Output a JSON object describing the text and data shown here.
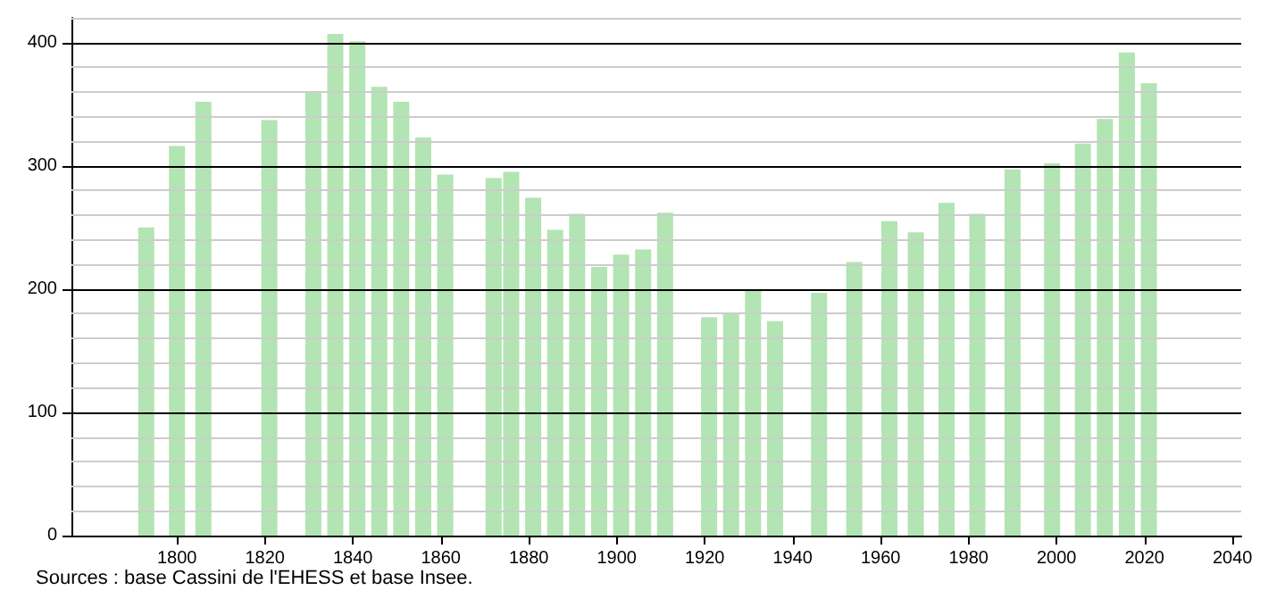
{
  "chart_data": {
    "type": "bar",
    "x": [
      1793,
      1800,
      1806,
      1821,
      1831,
      1836,
      1841,
      1846,
      1851,
      1856,
      1861,
      1872,
      1876,
      1881,
      1886,
      1891,
      1896,
      1901,
      1906,
      1911,
      1921,
      1926,
      1931,
      1936,
      1946,
      1954,
      1962,
      1968,
      1975,
      1982,
      1990,
      1999,
      2006,
      2011,
      2016,
      2021
    ],
    "values": [
      250,
      316,
      352,
      337,
      360,
      407,
      401,
      364,
      352,
      323,
      293,
      290,
      295,
      274,
      248,
      261,
      218,
      228,
      232,
      262,
      177,
      181,
      199,
      174,
      197,
      222,
      255,
      246,
      270,
      261,
      297,
      302,
      318,
      338,
      392,
      367
    ],
    "color": "#b3e4b3",
    "xlim": [
      1776,
      2042
    ],
    "xticks": [
      1800,
      1820,
      1840,
      1860,
      1880,
      1900,
      1920,
      1940,
      1960,
      1980,
      2000,
      2020,
      2040
    ],
    "ylim": [
      0,
      420
    ],
    "yticks": [
      0,
      {
        "value": 20,
        "label": null
      },
      {
        "value": 40,
        "label": null
      },
      {
        "value": 60,
        "label": null
      },
      {
        "value": 80,
        "label": null
      },
      100,
      {
        "value": 120,
        "label": null
      },
      {
        "value": 140,
        "label": null
      },
      {
        "value": 160,
        "label": null
      },
      {
        "value": 180,
        "label": null
      },
      200,
      {
        "value": 220,
        "label": null
      },
      {
        "value": 240,
        "label": null
      },
      {
        "value": 260,
        "label": null
      },
      {
        "value": 280,
        "label": null
      },
      300,
      {
        "value": 320,
        "label": null
      },
      {
        "value": 340,
        "label": null
      },
      {
        "value": 360,
        "label": null
      },
      {
        "value": 380,
        "label": null
      },
      400,
      {
        "value": 420,
        "label": null
      }
    ],
    "grid": "y",
    "annotations": [
      "Sources : base Cassini de l'EHESS et base Insee."
    ]
  }
}
